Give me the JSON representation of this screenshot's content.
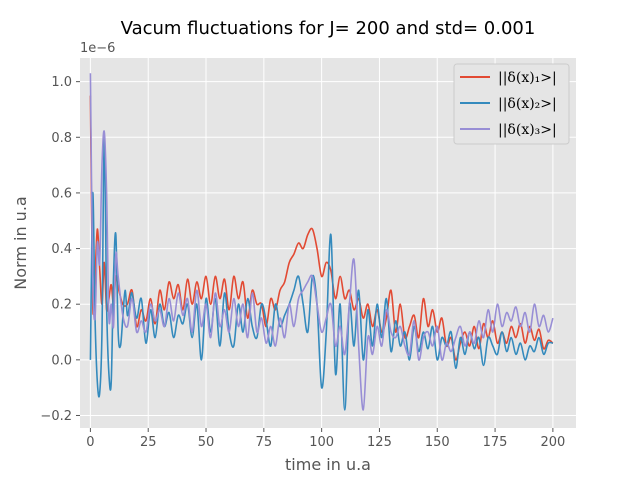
{
  "chart_data": {
    "type": "line",
    "title": "Vacum fluctuations for J= 200 and std= 0.001",
    "xlabel": "time in u.a",
    "ylabel": "Norm in u.a",
    "y_offset_label": "1e−6",
    "xlim": [
      -4.5,
      210
    ],
    "ylim": [
      -0.245,
      1.085
    ],
    "x_ticks": [
      0,
      25,
      50,
      75,
      100,
      125,
      150,
      175,
      200
    ],
    "x_tick_labels": [
      "0",
      "25",
      "50",
      "75",
      "100",
      "125",
      "150",
      "175",
      "200"
    ],
    "y_ticks": [
      -0.2,
      0.0,
      0.2,
      0.4,
      0.6,
      0.8,
      1.0
    ],
    "y_tick_labels": [
      "−0.2",
      "0.0",
      "0.2",
      "0.4",
      "0.6",
      "0.8",
      "1.0"
    ],
    "grid": true,
    "background": "#e5e5e5",
    "legend_position": "top-right",
    "series": [
      {
        "name": "||δ(x)₁>|",
        "color": "#e24a33",
        "x": [
          0,
          1,
          2,
          3,
          4,
          5,
          6,
          7,
          8,
          9,
          10,
          11,
          12,
          14,
          16,
          18,
          20,
          22,
          24,
          26,
          28,
          30,
          32,
          34,
          36,
          38,
          40,
          42,
          44,
          46,
          48,
          50,
          52,
          54,
          56,
          58,
          60,
          62,
          64,
          66,
          68,
          70,
          72,
          74,
          76,
          78,
          80,
          82,
          84,
          86,
          88,
          90,
          92,
          94,
          96,
          98,
          100,
          102,
          104,
          106,
          108,
          110,
          112,
          114,
          116,
          118,
          120,
          122,
          124,
          126,
          128,
          130,
          132,
          134,
          136,
          138,
          140,
          142,
          144,
          146,
          148,
          150,
          152,
          154,
          156,
          158,
          160,
          162,
          164,
          166,
          168,
          170,
          172,
          174,
          176,
          178,
          180,
          182,
          184,
          186,
          188,
          190,
          192,
          194,
          196,
          198,
          200
        ],
        "y": [
          0.95,
          0.2,
          0.3,
          0.47,
          0.33,
          0.2,
          0.35,
          0.18,
          0.22,
          0.27,
          0.2,
          0.3,
          0.26,
          0.2,
          0.2,
          0.25,
          0.12,
          0.18,
          0.14,
          0.22,
          0.13,
          0.25,
          0.18,
          0.28,
          0.22,
          0.27,
          0.18,
          0.29,
          0.2,
          0.28,
          0.22,
          0.3,
          0.2,
          0.3,
          0.22,
          0.29,
          0.18,
          0.3,
          0.22,
          0.28,
          0.15,
          0.25,
          0.2,
          0.2,
          0.12,
          0.22,
          0.18,
          0.25,
          0.28,
          0.35,
          0.38,
          0.42,
          0.4,
          0.45,
          0.47,
          0.4,
          0.3,
          0.35,
          0.32,
          0.22,
          0.3,
          0.22,
          0.25,
          0.18,
          0.22,
          0.15,
          0.2,
          0.12,
          0.18,
          0.1,
          0.15,
          0.25,
          0.1,
          0.2,
          0.08,
          0.12,
          0.16,
          0.08,
          0.22,
          0.12,
          0.18,
          0.1,
          0.15,
          0.05,
          0.08,
          0.0,
          0.06,
          0.1,
          0.05,
          0.12,
          0.04,
          0.13,
          0.08,
          0.14,
          0.06,
          0.1,
          0.06,
          0.12,
          0.08,
          0.13,
          0.06,
          0.12,
          0.07,
          0.11,
          0.04,
          0.07,
          0.06
        ]
      },
      {
        "name": "||δ(x)₂>|",
        "color": "#348abd",
        "x": [
          0,
          1,
          2,
          3,
          4,
          5,
          6,
          7,
          8,
          9,
          10,
          11,
          12,
          13,
          14,
          15,
          16,
          17,
          18,
          20,
          22,
          24,
          26,
          28,
          30,
          32,
          34,
          36,
          38,
          40,
          42,
          44,
          46,
          48,
          50,
          52,
          54,
          56,
          58,
          60,
          62,
          64,
          66,
          68,
          70,
          72,
          74,
          76,
          78,
          80,
          82,
          84,
          86,
          88,
          90,
          92,
          94,
          96,
          98,
          100,
          102,
          104,
          106,
          108,
          110,
          112,
          114,
          116,
          118,
          120,
          122,
          124,
          126,
          128,
          130,
          132,
          134,
          136,
          138,
          140,
          142,
          144,
          146,
          148,
          150,
          152,
          154,
          156,
          158,
          160,
          162,
          164,
          166,
          168,
          170,
          172,
          174,
          176,
          178,
          180,
          182,
          184,
          186,
          188,
          190,
          192,
          194,
          196,
          198,
          200
        ],
        "y": [
          0.0,
          0.6,
          0.15,
          -0.08,
          -0.12,
          0.1,
          0.8,
          0.2,
          -0.05,
          -0.08,
          0.3,
          0.45,
          0.1,
          0.05,
          0.15,
          0.25,
          0.16,
          0.2,
          0.24,
          0.15,
          0.22,
          0.06,
          0.18,
          0.08,
          0.2,
          0.12,
          0.17,
          0.08,
          0.16,
          0.13,
          0.2,
          0.08,
          0.2,
          0.0,
          0.22,
          0.1,
          0.22,
          0.05,
          0.24,
          0.1,
          0.05,
          0.2,
          0.1,
          0.22,
          0.12,
          0.08,
          0.2,
          0.14,
          0.05,
          0.2,
          0.12,
          0.16,
          0.2,
          0.25,
          0.3,
          0.2,
          0.1,
          0.3,
          0.2,
          -0.1,
          0.1,
          0.45,
          -0.05,
          0.2,
          -0.18,
          0.2,
          0.05,
          0.25,
          0.0,
          0.18,
          0.05,
          0.2,
          0.08,
          0.22,
          0.03,
          0.14,
          0.05,
          0.1,
          0.0,
          0.12,
          0.03,
          0.1,
          0.04,
          0.12,
          0.0,
          0.08,
          0.05,
          0.1,
          -0.03,
          0.08,
          0.02,
          0.1,
          0.04,
          0.08,
          -0.02,
          0.08,
          0.05,
          0.02,
          0.1,
          0.03,
          0.08,
          0.02,
          0.06,
          0.0,
          0.05,
          0.03,
          0.08,
          0.02,
          0.06,
          0.06
        ]
      },
      {
        "name": "||δ(x)₃>|",
        "color": "#988ed5",
        "x": [
          0,
          1,
          2,
          3,
          4,
          5,
          6,
          7,
          8,
          9,
          10,
          11,
          12,
          14,
          16,
          18,
          20,
          22,
          24,
          26,
          28,
          30,
          32,
          34,
          36,
          38,
          40,
          42,
          44,
          46,
          48,
          50,
          52,
          54,
          56,
          58,
          60,
          62,
          64,
          66,
          68,
          70,
          72,
          74,
          76,
          78,
          80,
          82,
          84,
          86,
          88,
          90,
          92,
          94,
          96,
          98,
          100,
          102,
          104,
          106,
          108,
          110,
          112,
          114,
          116,
          118,
          120,
          122,
          124,
          126,
          128,
          130,
          132,
          134,
          136,
          138,
          140,
          142,
          144,
          146,
          148,
          150,
          152,
          154,
          156,
          158,
          160,
          162,
          164,
          166,
          168,
          170,
          172,
          174,
          176,
          178,
          180,
          182,
          184,
          186,
          188,
          190,
          192,
          194,
          196,
          198,
          200
        ],
        "y": [
          1.03,
          0.3,
          0.15,
          0.42,
          0.35,
          0.7,
          0.82,
          0.6,
          0.15,
          0.2,
          0.12,
          0.38,
          0.3,
          0.16,
          0.12,
          0.22,
          0.1,
          0.14,
          0.1,
          0.2,
          0.14,
          0.18,
          0.12,
          0.22,
          0.14,
          0.24,
          0.16,
          0.22,
          0.1,
          0.25,
          0.12,
          0.2,
          0.08,
          0.24,
          0.12,
          0.18,
          0.1,
          0.22,
          0.12,
          0.2,
          0.08,
          0.24,
          0.1,
          0.15,
          0.06,
          0.12,
          0.05,
          0.15,
          0.08,
          0.2,
          0.12,
          0.22,
          0.25,
          0.28,
          0.3,
          0.2,
          0.1,
          0.15,
          0.2,
          0.05,
          0.12,
          0.02,
          0.2,
          0.36,
          0.05,
          -0.18,
          0.08,
          0.02,
          0.12,
          0.05,
          0.18,
          0.1,
          0.08,
          0.12,
          0.05,
          0.02,
          0.14,
          0.0,
          0.08,
          0.1,
          0.05,
          0.12,
          0.0,
          0.06,
          0.03,
          0.08,
          0.12,
          0.05,
          0.1,
          0.06,
          0.14,
          0.08,
          0.18,
          0.1,
          0.2,
          0.12,
          0.17,
          0.14,
          0.19,
          0.12,
          0.17,
          0.1,
          0.2,
          0.12,
          0.16,
          0.1,
          0.15
        ]
      }
    ]
  }
}
